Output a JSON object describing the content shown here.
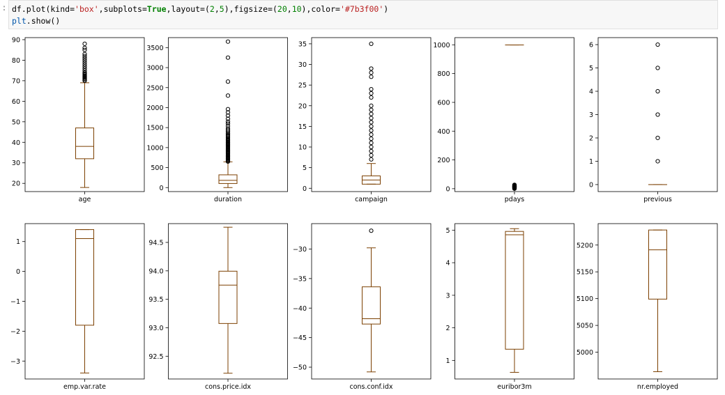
{
  "code": {
    "prompt": ":",
    "line1": {
      "p1": "df.plot(kind=",
      "s1": "'box'",
      "p2": ",subplots=",
      "k1": "True",
      "p3": ",layout=(",
      "n1": "2",
      "p4": ",",
      "n2": "5",
      "p5": "),figsize=(",
      "n3": "20",
      "p6": ",",
      "n4": "10",
      "p7": "),color=",
      "s2": "'#7b3f00'",
      "p8": ")"
    },
    "line2": {
      "obj": "plt",
      "rest": ".show()"
    }
  },
  "colors": {
    "box": "#7b3f00",
    "flier": "#000000"
  },
  "chart_data": [
    {
      "type": "box",
      "label": "age",
      "ylim": [
        16,
        91
      ],
      "ticks": [
        20,
        30,
        40,
        50,
        60,
        70,
        80,
        90
      ],
      "tick_labels": [
        "20",
        "30",
        "40",
        "50",
        "60",
        "70",
        "80",
        "90"
      ],
      "whisker_low": 18,
      "q1": 32,
      "median": 38,
      "q3": 47,
      "whisker_high": 69,
      "fliers": [
        70,
        70.5,
        71,
        71.5,
        72,
        72.5,
        73,
        73.5,
        74,
        75,
        76,
        77,
        78,
        79,
        80,
        81,
        82,
        83,
        85,
        86,
        88
      ]
    },
    {
      "type": "box",
      "label": "duration",
      "ylim": [
        -100,
        3750
      ],
      "ticks": [
        0,
        500,
        1000,
        1500,
        2000,
        2500,
        3000,
        3500
      ],
      "tick_labels": [
        "0",
        "500",
        "1000",
        "1500",
        "2000",
        "2500",
        "3000",
        "3500"
      ],
      "whisker_low": 0,
      "q1": 102,
      "median": 180,
      "q3": 319,
      "whisker_high": 644,
      "fliers": [
        650,
        660,
        680,
        700,
        720,
        740,
        760,
        780,
        800,
        820,
        840,
        860,
        880,
        900,
        920,
        940,
        960,
        980,
        1000,
        1020,
        1040,
        1060,
        1080,
        1100,
        1120,
        1140,
        1160,
        1180,
        1200,
        1220,
        1250,
        1280,
        1300,
        1330,
        1360,
        1400,
        1440,
        1480,
        1540,
        1600,
        1650,
        1720,
        1800,
        1880,
        1960,
        2300,
        2650,
        3250,
        3650
      ]
    },
    {
      "type": "box",
      "label": "campaign",
      "ylim": [
        -0.8,
        36.5
      ],
      "ticks": [
        0,
        5,
        10,
        15,
        20,
        25,
        30,
        35
      ],
      "tick_labels": [
        "0",
        "5",
        "10",
        "15",
        "20",
        "25",
        "30",
        "35"
      ],
      "whisker_low": 1,
      "q1": 1,
      "median": 2,
      "q3": 3,
      "whisker_high": 6,
      "fliers": [
        7,
        8,
        9,
        10,
        11,
        12,
        13,
        14,
        15,
        16,
        17,
        18,
        19,
        20,
        22,
        23,
        24,
        27,
        28,
        29,
        35
      ]
    },
    {
      "type": "box",
      "label": "pdays",
      "ylim": [
        -20,
        1050
      ],
      "ticks": [
        0,
        200,
        400,
        600,
        800,
        1000
      ],
      "tick_labels": [
        "0",
        "200",
        "400",
        "600",
        "800",
        "1000"
      ],
      "whisker_low": 999,
      "q1": 999,
      "median": 999,
      "q3": 999,
      "whisker_high": 999,
      "fliers": [
        0,
        1,
        2,
        3,
        4,
        5,
        6,
        7,
        8,
        9,
        10,
        11,
        12,
        13,
        14,
        15,
        16,
        17,
        18,
        19,
        20,
        21,
        22,
        25,
        26,
        27
      ]
    },
    {
      "type": "box",
      "label": "previous",
      "ylim": [
        -0.3,
        6.3
      ],
      "ticks": [
        0,
        1,
        2,
        3,
        4,
        5,
        6
      ],
      "tick_labels": [
        "0",
        "1",
        "2",
        "3",
        "4",
        "5",
        "6"
      ],
      "whisker_low": 0,
      "q1": 0,
      "median": 0,
      "q3": 0,
      "whisker_high": 0,
      "fliers": [
        1,
        2,
        3,
        4,
        5,
        6
      ]
    },
    {
      "type": "box",
      "label": "emp.var.rate",
      "ylim": [
        -3.6,
        1.6
      ],
      "ticks": [
        -3,
        -2,
        -1,
        0,
        1
      ],
      "tick_labels": [
        "−3",
        "−2",
        "−1",
        "0",
        "1"
      ],
      "whisker_low": -3.4,
      "q1": -1.8,
      "median": 1.1,
      "q3": 1.4,
      "whisker_high": 1.4,
      "fliers": []
    },
    {
      "type": "box",
      "label": "cons.price.idx",
      "ylim": [
        92.1,
        94.83
      ],
      "ticks": [
        92.5,
        93.0,
        93.5,
        94.0,
        94.5
      ],
      "tick_labels": [
        "92.5",
        "93.0",
        "93.5",
        "94.0",
        "94.5"
      ],
      "whisker_low": 92.201,
      "q1": 93.075,
      "median": 93.749,
      "q3": 93.994,
      "whisker_high": 94.767,
      "fliers": []
    },
    {
      "type": "box",
      "label": "cons.conf.idx",
      "ylim": [
        -52.0,
        -25.7
      ],
      "ticks": [
        -50,
        -45,
        -40,
        -35,
        -30
      ],
      "tick_labels": [
        "−50",
        "−45",
        "−40",
        "−35",
        "−30"
      ],
      "whisker_low": -50.8,
      "q1": -42.7,
      "median": -41.8,
      "q3": -36.4,
      "whisker_high": -29.8,
      "fliers": [
        -26.9
      ]
    },
    {
      "type": "box",
      "label": "euribor3m",
      "ylim": [
        0.43,
        5.2
      ],
      "ticks": [
        1,
        2,
        3,
        4,
        5
      ],
      "tick_labels": [
        "1",
        "2",
        "3",
        "4",
        "5"
      ],
      "whisker_low": 0.634,
      "q1": 1.344,
      "median": 4.857,
      "q3": 4.961,
      "whisker_high": 5.045,
      "fliers": []
    },
    {
      "type": "box",
      "label": "nr.employed",
      "ylim": [
        4950,
        5240
      ],
      "ticks": [
        5000,
        5050,
        5100,
        5150,
        5200
      ],
      "tick_labels": [
        "5000",
        "5050",
        "5100",
        "5150",
        "5200"
      ],
      "whisker_low": 4963.6,
      "q1": 5099.1,
      "median": 5191,
      "q3": 5228.1,
      "whisker_high": 5228.1,
      "fliers": []
    }
  ]
}
